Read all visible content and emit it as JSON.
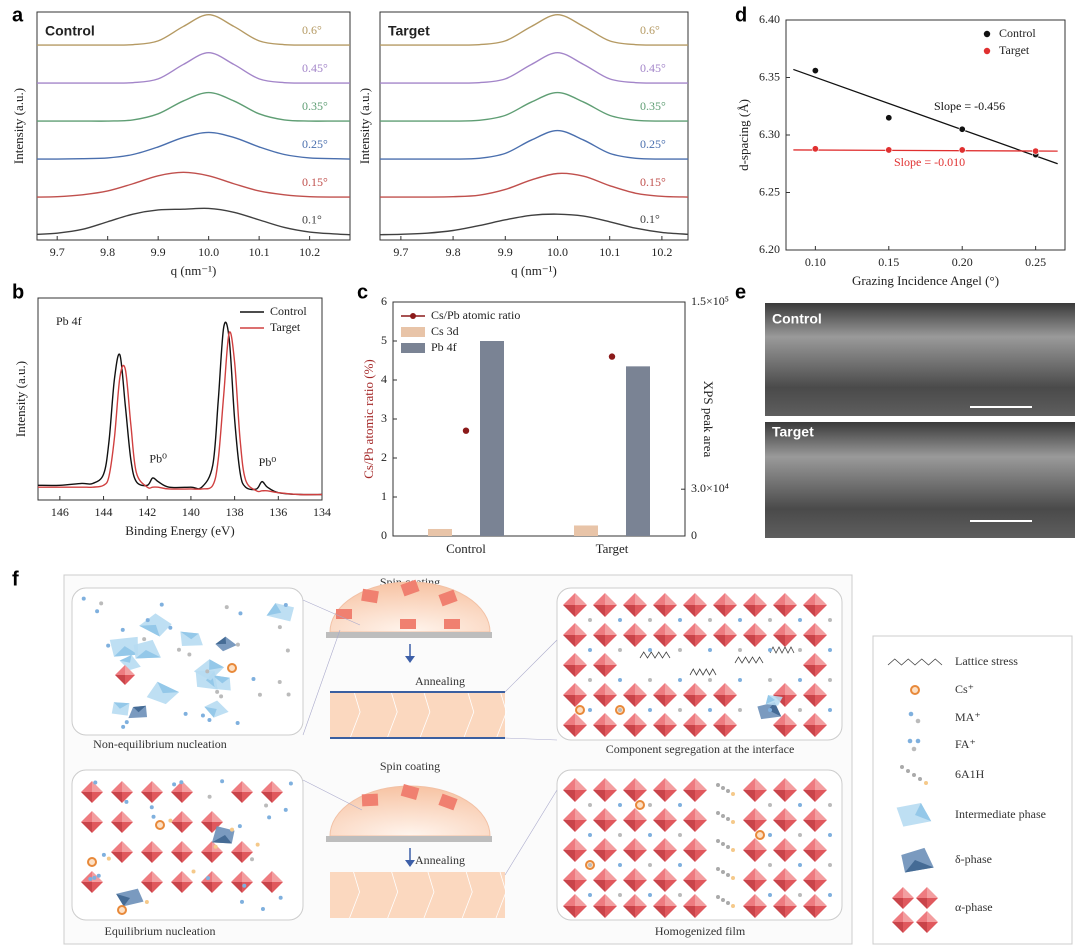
{
  "panel_labels": [
    "a",
    "b",
    "c",
    "d",
    "e",
    "f"
  ],
  "chart_data": [
    {
      "type": "line",
      "title": "Control",
      "xlabel": "q (nm⁻¹)",
      "ylabel": "Intensity (a.u.)",
      "x": [
        9.66,
        9.7,
        9.75,
        9.8,
        9.85,
        9.9,
        9.95,
        10,
        10.05,
        10.1,
        10.15,
        10.2,
        10.25,
        10.28
      ],
      "xlim": [
        9.66,
        10.28
      ],
      "xticks": [
        9.7,
        9.8,
        9.9,
        {
          "value": 10,
          "label": "10.0"
        },
        10.1,
        10.2
      ],
      "ylim": [
        -0.13,
        5.87
      ],
      "series": [
        {
          "name": "0.6°",
          "color": "#b59a63",
          "values": [
            5,
            5,
            5,
            5,
            5.01,
            5.11,
            5.49,
            5.8,
            5.49,
            5.11,
            5.01,
            5,
            5,
            5
          ]
        },
        {
          "name": "0.45°",
          "color": "#a385c9",
          "values": [
            4,
            4,
            4,
            4,
            4.01,
            4.11,
            4.49,
            4.8,
            4.49,
            4.11,
            4.01,
            4,
            4,
            4
          ]
        },
        {
          "name": "0.35°",
          "color": "#5f9e74",
          "values": [
            3,
            3,
            3,
            3,
            3.03,
            3.19,
            3.53,
            3.75,
            3.53,
            3.19,
            3.03,
            3,
            3,
            3
          ]
        },
        {
          "name": "0.25°",
          "color": "#4a6fae",
          "values": [
            2,
            2,
            2.01,
            2.03,
            2.12,
            2.32,
            2.57,
            2.7,
            2.57,
            2.32,
            2.12,
            2.03,
            2.01,
            2
          ]
        },
        {
          "name": "0.15°",
          "color": "#c0504d",
          "values": [
            1,
            1.01,
            1.06,
            1.16,
            1.35,
            1.56,
            1.65,
            1.56,
            1.35,
            1.16,
            1.06,
            1.01,
            1,
            1
          ]
        },
        {
          "name": "0.1°",
          "color": "#404040",
          "values": [
            0.02,
            0.05,
            0.15,
            0.35,
            0.55,
            0.66,
            0.68,
            0.7,
            0.6,
            0.4,
            0.2,
            0.08,
            0.03,
            0.01
          ]
        }
      ]
    },
    {
      "type": "line",
      "title": "Target",
      "xlabel": "q (nm⁻¹)",
      "ylabel": "Intensity (a.u.)",
      "x": [
        9.66,
        9.7,
        9.75,
        9.8,
        9.85,
        9.9,
        9.95,
        10,
        10.05,
        10.1,
        10.15,
        10.2,
        10.25
      ],
      "xlim": [
        9.66,
        10.25
      ],
      "xticks": [
        9.7,
        9.8,
        9.9,
        {
          "value": 10,
          "label": "10.0"
        },
        10.1,
        10.2
      ],
      "ylim": [
        -0.13,
        5.87
      ],
      "series": [
        {
          "name": "0.6°",
          "color": "#b59a63",
          "values": [
            5,
            5,
            5,
            5,
            5.01,
            5.11,
            5.49,
            5.8,
            5.49,
            5.11,
            5.01,
            5,
            5
          ]
        },
        {
          "name": "0.45°",
          "color": "#a385c9",
          "values": [
            4,
            4,
            4,
            4,
            4.01,
            4.11,
            4.49,
            4.8,
            4.49,
            4.11,
            4.01,
            4,
            4
          ]
        },
        {
          "name": "0.35°",
          "color": "#5f9e74",
          "values": [
            3,
            3,
            3,
            3,
            3.02,
            3.15,
            3.5,
            3.75,
            3.5,
            3.15,
            3.02,
            3,
            3
          ]
        },
        {
          "name": "0.25°",
          "color": "#4a6fae",
          "values": [
            2,
            2,
            2,
            2,
            2.02,
            2.15,
            2.5,
            2.75,
            2.5,
            2.15,
            2.02,
            2,
            2
          ]
        },
        {
          "name": "0.15°",
          "color": "#c0504d",
          "values": [
            1,
            1,
            1,
            1.01,
            1.05,
            1.2,
            1.45,
            1.62,
            1.55,
            1.3,
            1.1,
            1.02,
            1
          ]
        },
        {
          "name": "0.1°",
          "color": "#404040",
          "values": [
            0.01,
            0.02,
            0.05,
            0.12,
            0.25,
            0.4,
            0.52,
            0.55,
            0.5,
            0.35,
            0.18,
            0.07,
            0.02
          ]
        }
      ]
    },
    {
      "type": "scatter",
      "xlabel": "Grazing Incidence Angel (°)",
      "ylabel": "d-spacing (Å)",
      "xlim": [
        0.08,
        0.27
      ],
      "xticks": [
        {
          "value": 0.1,
          "label": "0.10"
        },
        {
          "value": 0.15,
          "label": "0.15"
        },
        {
          "value": 0.2,
          "label": "0.20"
        },
        {
          "value": 0.25,
          "label": "0.25"
        }
      ],
      "ylim": [
        6.2,
        6.4
      ],
      "yticks": [
        {
          "value": 6.2,
          "label": "6.20"
        },
        {
          "value": 6.25,
          "label": "6.25"
        },
        {
          "value": 6.3,
          "label": "6.30"
        },
        {
          "value": 6.35,
          "label": "6.35"
        },
        {
          "value": 6.4,
          "label": "6.40"
        }
      ],
      "legend": "upper right",
      "x": [
        0.1,
        0.15,
        0.2,
        0.25
      ],
      "fit_x": [
        0.085,
        0.265
      ],
      "series": [
        {
          "name": "Control",
          "color": "#111111",
          "values": [
            6.356,
            6.315,
            6.305,
            6.283
          ],
          "fit": [
            6.357,
            6.275
          ],
          "annotation": "Slope = -0.456"
        },
        {
          "name": "Target",
          "color": "#e03030",
          "values": [
            6.288,
            6.287,
            6.287,
            6.286
          ],
          "fit": [
            6.287,
            6.286
          ],
          "annotation": "Slope = -0.010"
        }
      ]
    },
    {
      "type": "line",
      "xlabel": "Binding Energy (eV)",
      "ylabel": "Intensity (a.u.)",
      "annotations": [
        "Pb 4f",
        "Pb⁰",
        "Pb⁰"
      ],
      "x": [
        147,
        146,
        145,
        144.5,
        144,
        143.75,
        143.5,
        143.25,
        143,
        142.75,
        142.5,
        142,
        141.75,
        141.5,
        141,
        140,
        139.5,
        139,
        138.75,
        138.5,
        138.25,
        138,
        137.75,
        137.5,
        137,
        136.75,
        136.5,
        136,
        135,
        134
      ],
      "xlim": [
        147,
        134
      ],
      "xticks": [
        146,
        144,
        142,
        140,
        138,
        136,
        134
      ],
      "ylim": [
        0,
        1.1
      ],
      "legend": "upper right",
      "series": [
        {
          "name": "Control",
          "color": "#111111",
          "values": [
            0.08,
            0.08,
            0.09,
            0.09,
            0.14,
            0.32,
            0.66,
            0.79,
            0.51,
            0.22,
            0.1,
            0.08,
            0.12,
            0.1,
            0.07,
            0.07,
            0.07,
            0.19,
            0.54,
            0.94,
            0.88,
            0.44,
            0.15,
            0.07,
            0.06,
            0.1,
            0.07,
            0.04,
            0.03,
            0.03
          ]
        },
        {
          "name": "Target",
          "color": "#d04040",
          "values": [
            0.07,
            0.07,
            0.07,
            0.07,
            0.08,
            0.13,
            0.34,
            0.67,
            0.71,
            0.41,
            0.15,
            0.07,
            0.07,
            0.07,
            0.06,
            0.06,
            0.06,
            0.08,
            0.22,
            0.57,
            0.91,
            0.75,
            0.33,
            0.11,
            0.05,
            0.05,
            0.05,
            0.04,
            0.03,
            0.03
          ]
        }
      ]
    },
    {
      "type": "bar",
      "ylabel": "Cs/Pb atomic ratio (%)",
      "y2label": "XPS peak area",
      "categories": [
        "Control",
        "Target"
      ],
      "ylim": [
        0,
        6
      ],
      "yticks": [
        0,
        1,
        2,
        3,
        4,
        5,
        6
      ],
      "y2lim": [
        0,
        150000
      ],
      "y2ticks": [
        0,
        {
          "value": 30000,
          "label": "3.0×10⁴"
        },
        {
          "value": 150000,
          "label": "1.5×10⁵"
        }
      ],
      "legend": "upper left",
      "series": [
        {
          "name": "Cs/Pb atomic ratio",
          "type": "scatter",
          "color": "#8b1a1a",
          "values": [
            2.7,
            4.6
          ]
        },
        {
          "name": "Cs 3d",
          "color": "#e8c4a8",
          "axis": "y2",
          "values": [
            4500,
            6750
          ]
        },
        {
          "name": "Pb 4f",
          "color": "#7a8394",
          "axis": "y2",
          "values": [
            125000,
            108750
          ]
        }
      ]
    }
  ],
  "images": {
    "labels": [
      "Control",
      "Target"
    ]
  },
  "diagram": {
    "steps": [
      "Spin coating",
      "Annealing",
      "Spin coating",
      "Annealing"
    ],
    "captions": [
      "Non-equilibrium nucleation",
      "Component segregation at the interface",
      "Equilibrium nucleation",
      "Homogenized film"
    ],
    "legend": [
      "Lattice stress",
      "Cs⁺",
      "MA⁺",
      "FA⁺",
      "6A1H",
      "Intermediate phase",
      "δ-phase",
      "α-phase"
    ]
  }
}
